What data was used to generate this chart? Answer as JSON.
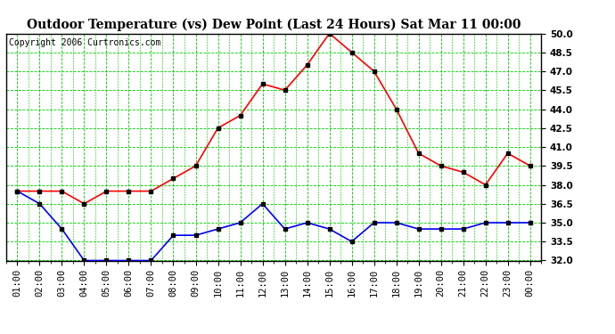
{
  "title": "Outdoor Temperature (vs) Dew Point (Last 24 Hours) Sat Mar 11 00:00",
  "copyright_text": "Copyright 2006 Curtronics.com",
  "x_labels": [
    "01:00",
    "02:00",
    "03:00",
    "04:00",
    "05:00",
    "06:00",
    "07:00",
    "08:00",
    "09:00",
    "10:00",
    "11:00",
    "12:00",
    "13:00",
    "14:00",
    "15:00",
    "16:00",
    "17:00",
    "18:00",
    "19:00",
    "20:00",
    "21:00",
    "22:00",
    "23:00",
    "00:00"
  ],
  "temp_values": [
    37.5,
    37.5,
    37.5,
    36.5,
    37.5,
    37.5,
    37.5,
    38.5,
    39.5,
    42.5,
    43.5,
    46.0,
    45.5,
    47.5,
    50.0,
    48.5,
    47.0,
    44.0,
    40.5,
    39.5,
    39.0,
    38.0,
    40.5,
    39.5
  ],
  "dew_values": [
    37.5,
    36.5,
    34.5,
    32.0,
    32.0,
    32.0,
    32.0,
    34.0,
    34.0,
    34.5,
    35.0,
    36.5,
    34.5,
    35.0,
    34.5,
    33.5,
    35.0,
    35.0,
    34.5,
    34.5,
    34.5,
    35.0,
    35.0,
    35.0
  ],
  "temp_color": "#FF0000",
  "dew_color": "#0000FF",
  "bg_color": "#FFFFFF",
  "plot_bg_color": "#FFFFFF",
  "grid_color": "#00CC00",
  "title_color": "#000000",
  "ylim": [
    32.0,
    50.0
  ],
  "yticks": [
    32.0,
    33.5,
    35.0,
    36.5,
    38.0,
    39.5,
    41.0,
    42.5,
    44.0,
    45.5,
    47.0,
    48.5,
    50.0
  ],
  "marker": "s",
  "marker_size": 2.5,
  "line_width": 1.2,
  "title_fontsize": 10,
  "tick_fontsize": 7.5,
  "copyright_fontsize": 7
}
